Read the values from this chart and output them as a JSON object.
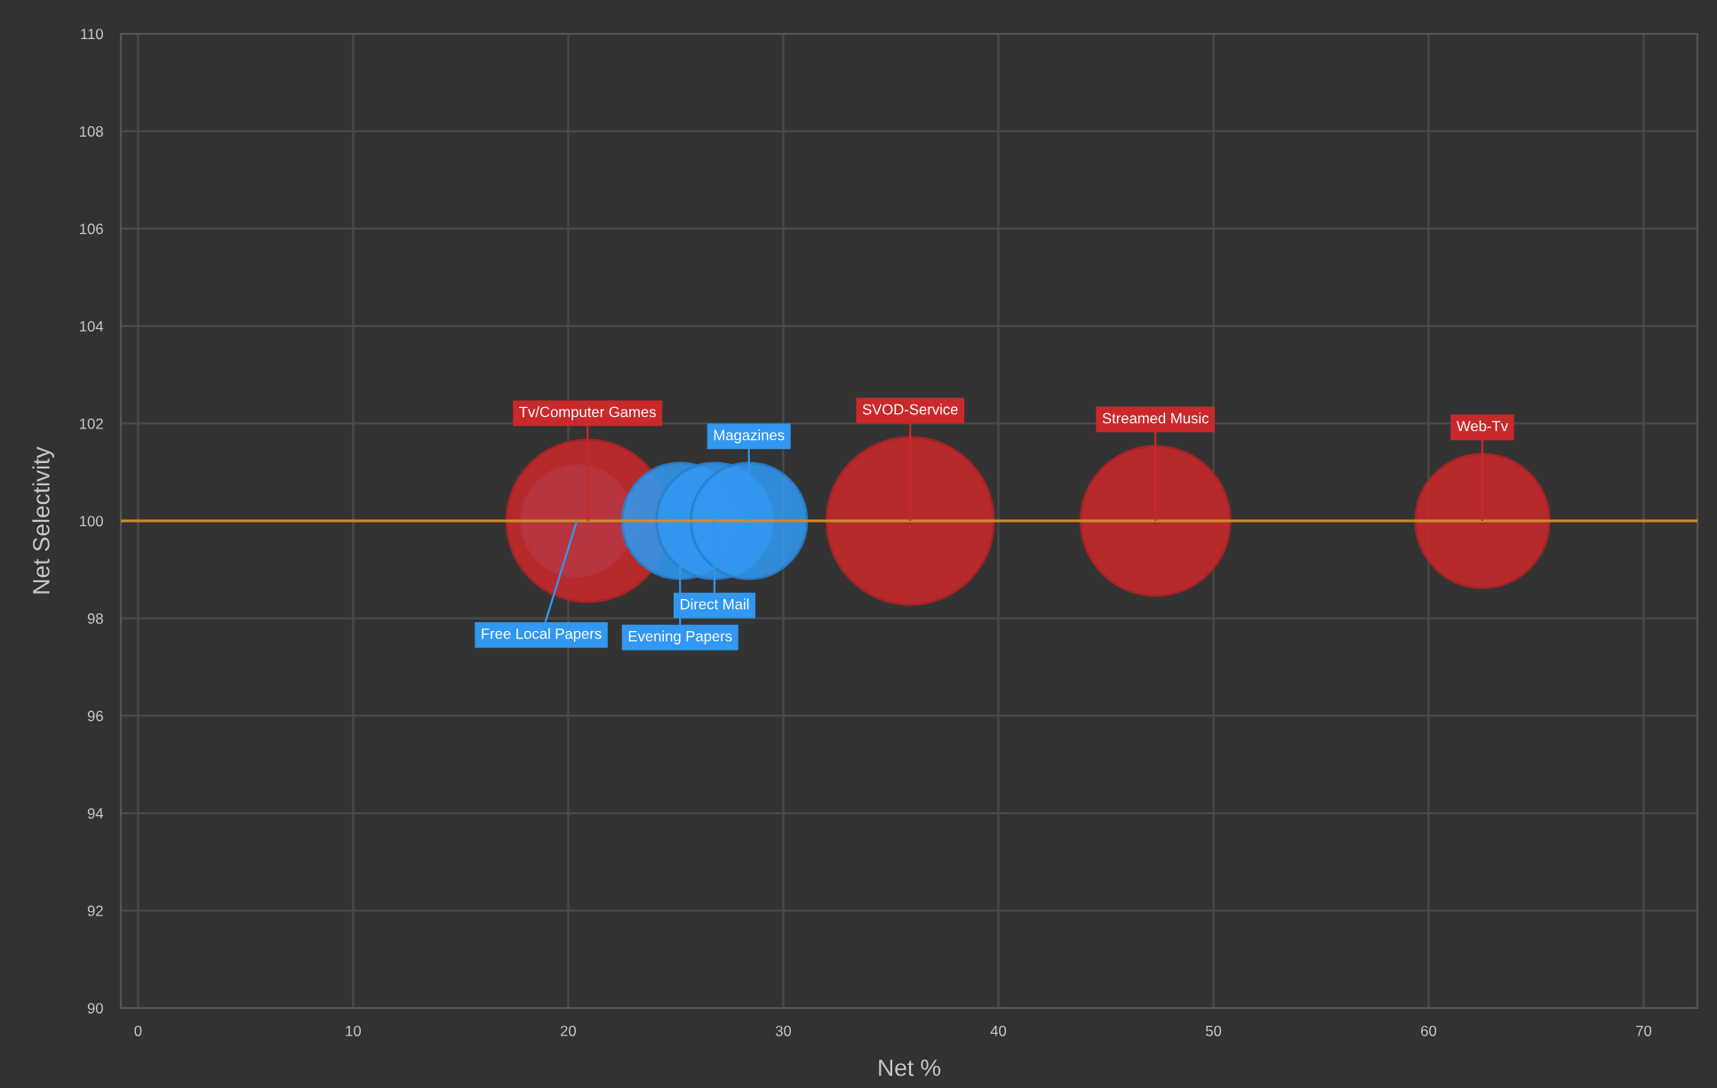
{
  "chart_data": {
    "type": "bubble",
    "xlabel": "Net %",
    "ylabel": "Net Selectivity",
    "xlim": [
      -0.8,
      72.5
    ],
    "ylim": [
      90,
      110
    ],
    "xticks": [
      0,
      10,
      20,
      30,
      40,
      50,
      60,
      70
    ],
    "yticks": [
      90,
      92,
      94,
      96,
      98,
      100,
      102,
      104,
      106,
      108,
      110
    ],
    "grid": true,
    "marker": "circle",
    "ref_lines": [
      {
        "axis": "y",
        "value": 100,
        "color": "#d08a2e"
      }
    ],
    "series": [
      {
        "name": "Free Local Papers",
        "color": "#3197f0",
        "x": [
          20.4
        ],
        "values": [
          100
        ],
        "sizes": [
          0.44
        ]
      },
      {
        "name": "Tv/Computer Games",
        "color": "#c9292b",
        "x": [
          20.9
        ],
        "values": [
          100
        ],
        "sizes": [
          0.94
        ]
      },
      {
        "name": "Evening Papers",
        "color": "#3197f0",
        "x": [
          25.2
        ],
        "values": [
          100
        ],
        "sizes": [
          0.48
        ]
      },
      {
        "name": "Direct Mail",
        "color": "#3197f0",
        "x": [
          26.8
        ],
        "values": [
          100
        ],
        "sizes": [
          0.48
        ]
      },
      {
        "name": "Magazines",
        "color": "#3197f0",
        "x": [
          28.4
        ],
        "values": [
          100
        ],
        "sizes": [
          0.48
        ]
      },
      {
        "name": "SVOD-Service",
        "color": "#c9292b",
        "x": [
          35.9
        ],
        "values": [
          100
        ],
        "sizes": [
          1
        ]
      },
      {
        "name": "Streamed Music",
        "color": "#c9292b",
        "x": [
          47.3
        ],
        "values": [
          100
        ],
        "sizes": [
          0.8
        ]
      },
      {
        "name": "Web-Tv",
        "color": "#c9292b",
        "x": [
          62.5
        ],
        "values": [
          100
        ],
        "sizes": [
          0.64
        ]
      }
    ]
  }
}
